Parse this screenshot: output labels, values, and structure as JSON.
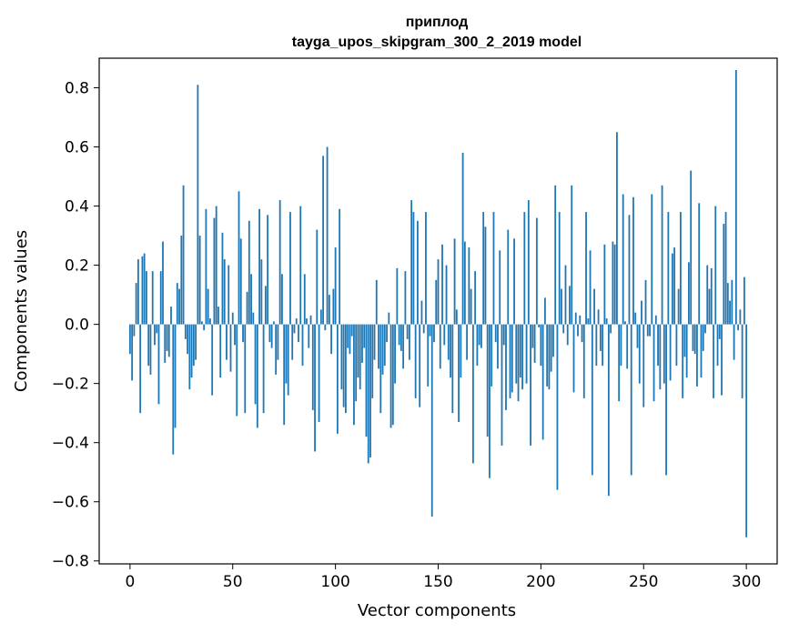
{
  "chart_data": {
    "type": "bar",
    "title": "приплод",
    "subtitle": "tayga_upos_skipgram_300_2_2019 model",
    "xlabel": "Vector components",
    "ylabel": "Components values",
    "xlim": [
      -15,
      315
    ],
    "ylim": [
      -0.81,
      0.9
    ],
    "xticks": [
      0,
      50,
      100,
      150,
      200,
      250,
      300
    ],
    "xtick_labels": [
      "0",
      "50",
      "100",
      "150",
      "200",
      "250",
      "300"
    ],
    "yticks": [
      -0.8,
      -0.6,
      -0.4,
      -0.2,
      0.0,
      0.2,
      0.4,
      0.6,
      0.8
    ],
    "ytick_labels": [
      "−0.8",
      "−0.6",
      "−0.4",
      "−0.2",
      "0.0",
      "0.2",
      "0.4",
      "0.6",
      "0.8"
    ],
    "bar_color": "#1f77b4",
    "grid": false,
    "legend": "none",
    "values": [
      -0.1,
      -0.19,
      -0.04,
      0.14,
      0.22,
      -0.3,
      0.23,
      0.24,
      0.18,
      -0.14,
      -0.17,
      0.18,
      -0.07,
      -0.03,
      -0.27,
      0.18,
      0.28,
      -0.13,
      -0.09,
      -0.11,
      0.06,
      -0.44,
      -0.35,
      0.14,
      0.12,
      0.3,
      0.47,
      -0.05,
      -0.1,
      -0.22,
      -0.18,
      -0.14,
      -0.12,
      0.81,
      0.3,
      0.01,
      -0.02,
      0.39,
      0.12,
      0.02,
      -0.24,
      0.36,
      0.4,
      0.06,
      -0.18,
      0.31,
      0.22,
      -0.12,
      0.2,
      -0.16,
      0.04,
      -0.07,
      -0.31,
      0.45,
      0.29,
      -0.06,
      -0.3,
      0.11,
      0.35,
      0.17,
      0.04,
      -0.27,
      -0.35,
      0.39,
      0.22,
      -0.3,
      0.13,
      0.37,
      -0.06,
      -0.08,
      0.01,
      -0.17,
      -0.12,
      0.42,
      0.17,
      -0.34,
      -0.2,
      -0.24,
      0.38,
      -0.12,
      -0.03,
      0.02,
      -0.06,
      0.4,
      -0.14,
      0.17,
      0.02,
      -0.08,
      0.03,
      -0.29,
      -0.43,
      0.32,
      -0.33,
      0.05,
      0.57,
      -0.02,
      0.6,
      0.1,
      -0.1,
      0.12,
      0.26,
      -0.37,
      0.39,
      -0.22,
      -0.28,
      -0.3,
      -0.08,
      -0.1,
      -0.04,
      -0.34,
      -0.26,
      -0.18,
      -0.22,
      -0.13,
      -0.08,
      -0.38,
      -0.47,
      -0.45,
      -0.25,
      -0.12,
      0.15,
      -0.15,
      -0.3,
      -0.17,
      -0.14,
      -0.06,
      0.04,
      -0.35,
      -0.34,
      -0.2,
      0.19,
      -0.07,
      -0.09,
      -0.15,
      0.18,
      -0.05,
      -0.12,
      0.42,
      0.38,
      -0.25,
      0.35,
      -0.28,
      0.08,
      -0.03,
      0.38,
      -0.21,
      -0.04,
      -0.65,
      -0.06,
      0.15,
      0.22,
      -0.15,
      0.27,
      -0.07,
      0.2,
      -0.12,
      -0.18,
      -0.3,
      0.29,
      0.05,
      -0.33,
      -0.18,
      0.58,
      0.28,
      -0.12,
      0.26,
      0.12,
      -0.47,
      0.18,
      -0.14,
      -0.07,
      -0.08,
      0.38,
      0.33,
      -0.38,
      -0.52,
      -0.21,
      0.38,
      -0.06,
      -0.15,
      0.25,
      -0.41,
      -0.07,
      -0.29,
      0.32,
      -0.25,
      -0.23,
      0.29,
      -0.2,
      -0.26,
      -0.18,
      -0.22,
      0.38,
      -0.2,
      0.42,
      -0.41,
      -0.08,
      -0.13,
      0.36,
      -0.01,
      -0.14,
      -0.39,
      0.09,
      -0.21,
      -0.22,
      -0.16,
      -0.11,
      0.47,
      -0.56,
      0.38,
      0.12,
      -0.03,
      0.2,
      -0.07,
      0.13,
      0.47,
      -0.23,
      0.04,
      -0.04,
      0.03,
      -0.06,
      -0.25,
      0.38,
      0.02,
      0.25,
      -0.51,
      0.12,
      -0.14,
      0.05,
      -0.09,
      -0.14,
      0.27,
      0.02,
      -0.58,
      -0.03,
      0.28,
      0.27,
      0.65,
      -0.26,
      -0.14,
      0.44,
      0.01,
      -0.15,
      0.37,
      -0.51,
      0.43,
      0.04,
      -0.08,
      -0.2,
      0.08,
      -0.28,
      0.15,
      -0.04,
      -0.04,
      0.44,
      -0.26,
      0.03,
      -0.14,
      -0.22,
      0.47,
      -0.2,
      -0.51,
      0.38,
      -0.19,
      0.24,
      0.26,
      -0.14,
      0.12,
      0.38,
      -0.25,
      -0.11,
      -0.18,
      0.21,
      0.52,
      -0.09,
      -0.1,
      -0.21,
      0.41,
      -0.18,
      -0.09,
      -0.03,
      0.2,
      0.12,
      0.19,
      -0.25,
      0.4,
      -0.14,
      -0.05,
      -0.24,
      0.34,
      0.38,
      0.14,
      0.08,
      0.15,
      -0.12,
      0.86,
      -0.02,
      0.05,
      -0.25,
      0.16,
      -0.72
    ]
  }
}
